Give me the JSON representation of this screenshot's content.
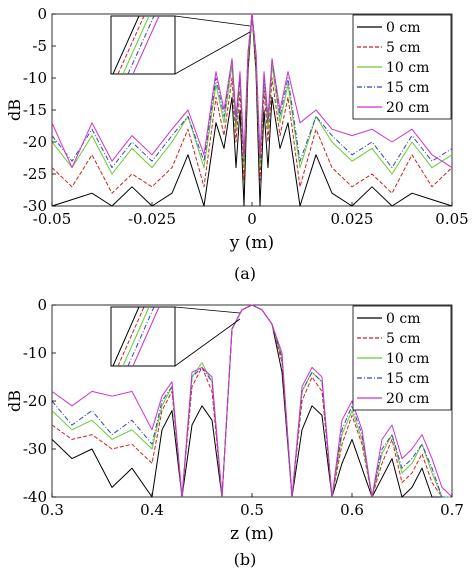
{
  "chart_data": [
    {
      "type": "line",
      "caption": "(a)",
      "xlabel": "y (m)",
      "ylabel": "dB",
      "xlim": [
        -0.05,
        0.05
      ],
      "ylim": [
        -30,
        0
      ],
      "x_ticks": [
        -0.05,
        -0.025,
        0,
        0.025,
        0.05
      ],
      "x_tick_labels": [
        "-0.05",
        "-0.025",
        "0",
        "0.025",
        "0.05"
      ],
      "y_ticks": [
        0,
        -5,
        -10,
        -15,
        -20,
        -25,
        -30
      ],
      "y_tick_labels": [
        "0",
        "-5",
        "-10",
        "-15",
        "-20",
        "-25",
        "-30"
      ],
      "grid": false,
      "legend_position": "top-right",
      "inset": "zoom of main lobe near y = 0, upper-left",
      "series": [
        {
          "name": "0 cm",
          "color": "#000000",
          "dash": "solid",
          "x": [
            -0.05,
            -0.045,
            -0.04,
            -0.035,
            -0.03,
            -0.025,
            -0.02,
            -0.016,
            -0.012,
            -0.009,
            -0.007,
            -0.005,
            -0.004,
            -0.003,
            -0.002,
            -0.001,
            0,
            0.001,
            0.002,
            0.003,
            0.004,
            0.005,
            0.007,
            0.009,
            0.012,
            0.016,
            0.02,
            0.025,
            0.03,
            0.035,
            0.04,
            0.045,
            0.05
          ],
          "y": [
            -30,
            -29,
            -28,
            -30,
            -27,
            -30,
            -28,
            -22,
            -30,
            -17,
            -21,
            -13,
            -24,
            -15,
            -30,
            -9,
            0,
            -9,
            -30,
            -15,
            -24,
            -13,
            -21,
            -17,
            -30,
            -22,
            -28,
            -30,
            -27,
            -30,
            -28,
            -29,
            -30
          ]
        },
        {
          "name": "5 cm",
          "color": "#cc2222",
          "dash": "4 2",
          "x": [
            -0.05,
            -0.045,
            -0.04,
            -0.035,
            -0.03,
            -0.025,
            -0.02,
            -0.016,
            -0.012,
            -0.009,
            -0.007,
            -0.005,
            -0.004,
            -0.003,
            -0.002,
            -0.001,
            0,
            0.001,
            0.002,
            0.003,
            0.004,
            0.005,
            0.007,
            0.009,
            0.012,
            0.016,
            0.02,
            0.025,
            0.03,
            0.035,
            0.04,
            0.045,
            0.05
          ],
          "y": [
            -24,
            -27,
            -22,
            -28,
            -25,
            -27,
            -24,
            -18,
            -27,
            -13,
            -19,
            -10,
            -20,
            -12,
            -26,
            -8,
            0,
            -8,
            -26,
            -12,
            -20,
            -10,
            -19,
            -13,
            -27,
            -18,
            -24,
            -27,
            -25,
            -28,
            -22,
            -27,
            -24
          ]
        },
        {
          "name": "10 cm",
          "color": "#66cc33",
          "dash": "solid",
          "x": [
            -0.05,
            -0.045,
            -0.04,
            -0.035,
            -0.03,
            -0.025,
            -0.02,
            -0.016,
            -0.012,
            -0.009,
            -0.007,
            -0.005,
            -0.004,
            -0.003,
            -0.002,
            -0.001,
            0,
            0.001,
            0.002,
            0.003,
            0.004,
            0.005,
            0.007,
            0.009,
            0.012,
            0.016,
            0.02,
            0.025,
            0.03,
            0.035,
            0.04,
            0.045,
            0.05
          ],
          "y": [
            -20,
            -24,
            -19,
            -25,
            -21,
            -24,
            -20,
            -16,
            -24,
            -11,
            -17,
            -8,
            -18,
            -10,
            -24,
            -7,
            0,
            -7,
            -24,
            -10,
            -18,
            -8,
            -17,
            -11,
            -24,
            -16,
            -20,
            -23,
            -21,
            -25,
            -20,
            -24,
            -22
          ]
        },
        {
          "name": "15 cm",
          "color": "#3344bb",
          "dash": "5 2 1 2",
          "x": [
            -0.05,
            -0.045,
            -0.04,
            -0.035,
            -0.03,
            -0.025,
            -0.02,
            -0.016,
            -0.012,
            -0.009,
            -0.007,
            -0.005,
            -0.004,
            -0.003,
            -0.002,
            -0.001,
            0,
            0.001,
            0.002,
            0.003,
            0.004,
            0.005,
            0.007,
            0.009,
            0.012,
            0.016,
            0.02,
            0.025,
            0.03,
            0.035,
            0.04,
            0.045,
            0.05
          ],
          "y": [
            -19,
            -23,
            -18,
            -24,
            -20,
            -23,
            -19,
            -16,
            -23,
            -10,
            -16,
            -7,
            -17,
            -10,
            -23,
            -6,
            0,
            -6,
            -23,
            -10,
            -17,
            -7,
            -16,
            -10,
            -23,
            -16,
            -19,
            -22,
            -20,
            -24,
            -19,
            -23,
            -21
          ]
        },
        {
          "name": "20 cm",
          "color": "#cc33cc",
          "dash": "solid",
          "x": [
            -0.05,
            -0.045,
            -0.04,
            -0.035,
            -0.03,
            -0.025,
            -0.02,
            -0.016,
            -0.012,
            -0.009,
            -0.007,
            -0.005,
            -0.004,
            -0.003,
            -0.002,
            -0.001,
            0,
            0.001,
            0.002,
            0.003,
            0.004,
            0.005,
            0.007,
            0.009,
            0.012,
            0.016,
            0.02,
            0.025,
            0.03,
            0.035,
            0.04,
            0.045,
            0.05
          ],
          "y": [
            -17,
            -24,
            -17,
            -23,
            -19,
            -22,
            -18,
            -15,
            -22,
            -9,
            -15,
            -7,
            -16,
            -9,
            -22,
            -6,
            0,
            -6,
            -22,
            -9,
            -16,
            -7,
            -15,
            -9,
            -17,
            -15,
            -18,
            -19,
            -18,
            -20,
            -18,
            -22,
            -24
          ]
        }
      ]
    },
    {
      "type": "line",
      "caption": "(b)",
      "xlabel": "z (m)",
      "ylabel": "dB",
      "xlim": [
        0.3,
        0.7
      ],
      "ylim": [
        -40,
        0
      ],
      "x_ticks": [
        0.3,
        0.4,
        0.5,
        0.6,
        0.7
      ],
      "x_tick_labels": [
        "0.3",
        "0.4",
        "0.5",
        "0.6",
        "0.7"
      ],
      "y_ticks": [
        0,
        -10,
        -20,
        -30,
        -40
      ],
      "y_tick_labels": [
        "0",
        "-10",
        "-20",
        "-30",
        "-40"
      ],
      "grid": false,
      "legend_position": "top-right",
      "inset": "zoom of main lobe near z = 0.5, upper-left",
      "series": [
        {
          "name": "0 cm",
          "color": "#000000",
          "dash": "solid",
          "x": [
            0.3,
            0.32,
            0.34,
            0.36,
            0.38,
            0.4,
            0.41,
            0.42,
            0.43,
            0.44,
            0.45,
            0.46,
            0.47,
            0.48,
            0.49,
            0.5,
            0.51,
            0.52,
            0.53,
            0.54,
            0.55,
            0.56,
            0.57,
            0.58,
            0.59,
            0.6,
            0.61,
            0.62,
            0.63,
            0.64,
            0.65,
            0.66,
            0.67,
            0.68,
            0.69,
            0.7
          ],
          "y": [
            -28,
            -32,
            -30,
            -38,
            -34,
            -40,
            -26,
            -22,
            -40,
            -25,
            -21,
            -24,
            -40,
            -5,
            -1,
            0,
            -1,
            -4,
            -14,
            -40,
            -26,
            -21,
            -23,
            -40,
            -33,
            -28,
            -34,
            -40,
            -36,
            -32,
            -40,
            -38,
            -34,
            -40,
            -40,
            -40
          ]
        },
        {
          "name": "5 cm",
          "color": "#cc2222",
          "dash": "4 2",
          "x": [
            0.3,
            0.32,
            0.34,
            0.36,
            0.38,
            0.4,
            0.41,
            0.42,
            0.43,
            0.44,
            0.45,
            0.46,
            0.47,
            0.48,
            0.49,
            0.5,
            0.51,
            0.52,
            0.53,
            0.54,
            0.55,
            0.56,
            0.57,
            0.58,
            0.59,
            0.6,
            0.61,
            0.62,
            0.63,
            0.64,
            0.65,
            0.66,
            0.67,
            0.68,
            0.69,
            0.7
          ],
          "y": [
            -25,
            -28,
            -27,
            -30,
            -29,
            -33,
            -22,
            -18,
            -40,
            -17,
            -13,
            -18,
            -40,
            -5,
            -1,
            0,
            -1,
            -4,
            -12,
            -40,
            -20,
            -15,
            -18,
            -40,
            -29,
            -23,
            -29,
            -40,
            -33,
            -28,
            -37,
            -35,
            -31,
            -37,
            -40,
            -40
          ]
        },
        {
          "name": "10 cm",
          "color": "#66cc33",
          "dash": "solid",
          "x": [
            0.3,
            0.32,
            0.34,
            0.36,
            0.38,
            0.4,
            0.41,
            0.42,
            0.43,
            0.44,
            0.45,
            0.46,
            0.47,
            0.48,
            0.49,
            0.5,
            0.51,
            0.52,
            0.53,
            0.54,
            0.55,
            0.56,
            0.57,
            0.58,
            0.59,
            0.6,
            0.61,
            0.62,
            0.63,
            0.64,
            0.65,
            0.66,
            0.67,
            0.68,
            0.69,
            0.7
          ],
          "y": [
            -22,
            -26,
            -24,
            -28,
            -26,
            -30,
            -21,
            -17,
            -40,
            -15,
            -12,
            -16,
            -40,
            -5,
            -1,
            0,
            -1,
            -4,
            -11,
            -40,
            -18,
            -14,
            -16,
            -40,
            -27,
            -22,
            -28,
            -40,
            -31,
            -27,
            -35,
            -33,
            -29,
            -35,
            -40,
            -40
          ]
        },
        {
          "name": "15 cm",
          "color": "#3344bb",
          "dash": "5 2 1 2",
          "x": [
            0.3,
            0.32,
            0.34,
            0.36,
            0.38,
            0.4,
            0.41,
            0.42,
            0.43,
            0.44,
            0.45,
            0.46,
            0.47,
            0.48,
            0.49,
            0.5,
            0.51,
            0.52,
            0.53,
            0.54,
            0.55,
            0.56,
            0.57,
            0.58,
            0.59,
            0.6,
            0.61,
            0.62,
            0.63,
            0.64,
            0.65,
            0.66,
            0.67,
            0.68,
            0.69,
            0.7
          ],
          "y": [
            -20,
            -25,
            -22,
            -27,
            -24,
            -29,
            -20,
            -17,
            -40,
            -15,
            -13,
            -16,
            -40,
            -5,
            -1,
            0,
            -1,
            -4,
            -11,
            -40,
            -18,
            -14,
            -16,
            -40,
            -26,
            -21,
            -27,
            -40,
            -30,
            -27,
            -34,
            -32,
            -29,
            -34,
            -40,
            -40
          ]
        },
        {
          "name": "20 cm",
          "color": "#cc33cc",
          "dash": "solid",
          "x": [
            0.3,
            0.32,
            0.34,
            0.36,
            0.38,
            0.4,
            0.41,
            0.42,
            0.43,
            0.44,
            0.45,
            0.46,
            0.47,
            0.48,
            0.49,
            0.5,
            0.51,
            0.52,
            0.53,
            0.54,
            0.55,
            0.56,
            0.57,
            0.58,
            0.59,
            0.6,
            0.61,
            0.62,
            0.63,
            0.64,
            0.65,
            0.66,
            0.67,
            0.68,
            0.69,
            0.7
          ],
          "y": [
            -18,
            -21,
            -18,
            -19,
            -18,
            -26,
            -19,
            -16,
            -40,
            -14,
            -13,
            -15,
            -40,
            -5,
            -1,
            0,
            -1,
            -4,
            -10,
            -40,
            -17,
            -13,
            -15,
            -40,
            -24,
            -20,
            -26,
            -40,
            -28,
            -25,
            -32,
            -30,
            -27,
            -32,
            -38,
            -40
          ]
        }
      ]
    }
  ]
}
